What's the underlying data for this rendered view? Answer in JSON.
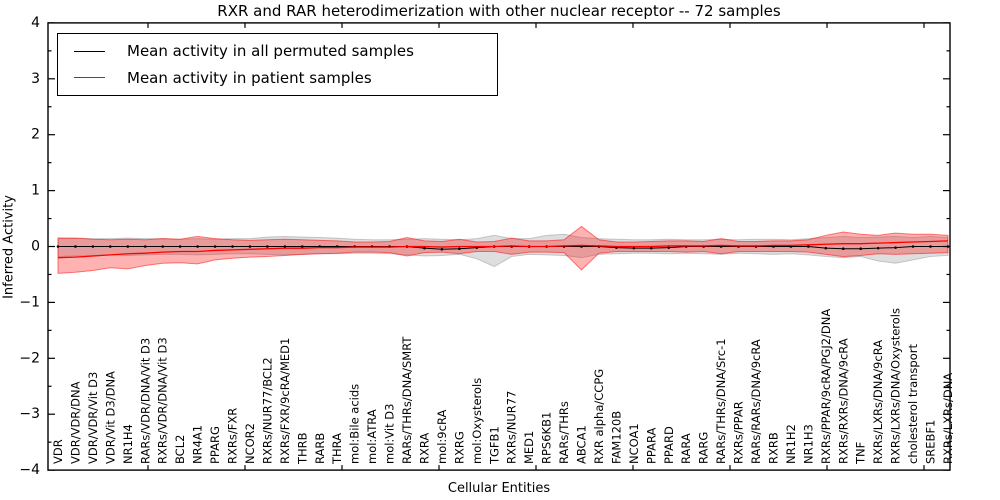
{
  "figure": {
    "legend": [
      {
        "label": "Mean activity in all permuted samples",
        "color": "#000000"
      },
      {
        "label": "Mean activity in patient samples",
        "color": "#ff0000"
      }
    ]
  },
  "chart_data": {
    "type": "line",
    "title": "RXR and RAR heterodimerization with other nuclear receptor -- 72 samples",
    "xlabel": "Cellular Entities",
    "ylabel": "Inferred Activity",
    "ylim": [
      -4,
      4
    ],
    "yticks": [
      -4,
      -3,
      -2,
      -1,
      0,
      1,
      2,
      3,
      4
    ],
    "grid": false,
    "legend_position": "upper left",
    "categories": [
      "VDR",
      "VDR/VDR/DNA",
      "VDR/VDR/Vit D3",
      "VDR/Vit D3/DNA",
      "NR1H4",
      "RARs/VDR/DNA/Vit D3",
      "RXRs/VDR/DNA/Vit D3",
      "BCL2",
      "NR4A1",
      "PPARG",
      "RXRs/FXR",
      "NCOR2",
      "RXRs/NUR77/BCL2",
      "RXRs/FXR/9cRA/MED1",
      "THRB",
      "RARB",
      "THRA",
      "mol:Bile acids",
      "mol:ATRA",
      "mol:Vit D3",
      "RARs/THRs/DNA/SMRT",
      "RXRA",
      "mol:9cRA",
      "RXRG",
      "mol:Oxysterols",
      "TGFB1",
      "RXRs/NUR77",
      "MED1",
      "RPS6KB1",
      "RARs/THRs",
      "ABCA1",
      "RXR alpha/CCPG",
      "FAM120B",
      "NCOA1",
      "PPARA",
      "PPARD",
      "RARA",
      "RARG",
      "RARs/THRs/DNA/Src-1",
      "RXRs/PPAR",
      "RARs/RARs/DNA/9cRA",
      "RXRB",
      "NR1H2",
      "NR1H3",
      "RXRs/PPAR/9cRA/PGJ2/DNA",
      "RXRs/RXRs/DNA/9cRA",
      "TNF",
      "RXRs/LXRs/DNA/9cRA",
      "RXRs/LXRs/DNA/Oxysterols",
      "cholesterol transport",
      "SREBF1",
      "RXRs/LXRs/DNA"
    ],
    "series": [
      {
        "name": "Mean activity in all permuted samples",
        "color": "#000000",
        "band_color": "rgba(0,0,0,0.13)",
        "band_edge": "rgba(0,0,0,0.18)",
        "marker": "dot",
        "values": [
          0,
          0,
          0,
          0,
          0,
          0,
          0,
          0,
          0,
          0,
          0,
          0,
          0,
          0,
          0,
          0,
          0,
          0,
          0,
          0,
          0,
          -0.03,
          -0.05,
          -0.04,
          -0.02,
          0,
          0,
          0,
          0,
          0,
          0,
          0,
          -0.02,
          -0.03,
          -0.03,
          -0.02,
          0,
          0,
          0,
          0,
          0,
          0,
          0,
          0,
          -0.03,
          -0.04,
          -0.04,
          -0.03,
          -0.02,
          0,
          0,
          0
        ],
        "band_upper": [
          0.16,
          0.15,
          0.14,
          0.14,
          0.15,
          0.14,
          0.14,
          0.13,
          0.14,
          0.13,
          0.14,
          0.14,
          0.17,
          0.18,
          0.17,
          0.16,
          0.15,
          0.13,
          0.12,
          0.12,
          0.13,
          0.14,
          0.13,
          0.12,
          0.14,
          0.2,
          0.14,
          0.14,
          0.2,
          0.22,
          0.16,
          0.14,
          0.13,
          0.12,
          0.12,
          0.13,
          0.12,
          0.12,
          0.13,
          0.12,
          0.13,
          0.13,
          0.12,
          0.14,
          0.16,
          0.18,
          0.16,
          0.17,
          0.18,
          0.16,
          0.18,
          0.16
        ],
        "band_lower": [
          -0.18,
          -0.17,
          -0.16,
          -0.15,
          -0.16,
          -0.15,
          -0.14,
          -0.14,
          -0.15,
          -0.14,
          -0.13,
          -0.13,
          -0.14,
          -0.15,
          -0.14,
          -0.13,
          -0.13,
          -0.12,
          -0.12,
          -0.13,
          -0.15,
          -0.17,
          -0.16,
          -0.14,
          -0.22,
          -0.36,
          -0.18,
          -0.14,
          -0.15,
          -0.16,
          -0.2,
          -0.14,
          -0.13,
          -0.12,
          -0.12,
          -0.13,
          -0.12,
          -0.13,
          -0.14,
          -0.12,
          -0.13,
          -0.14,
          -0.13,
          -0.15,
          -0.18,
          -0.2,
          -0.18,
          -0.26,
          -0.3,
          -0.24,
          -0.18,
          -0.16
        ]
      },
      {
        "name": "Mean activity in patient samples",
        "color": "#ff0000",
        "band_color": "rgba(255,0,0,0.30)",
        "band_edge": "rgba(255,0,0,0.50)",
        "marker": "none",
        "values": [
          -0.2,
          -0.19,
          -0.17,
          -0.15,
          -0.13,
          -0.12,
          -0.1,
          -0.09,
          -0.09,
          -0.07,
          -0.06,
          -0.05,
          -0.04,
          -0.03,
          -0.03,
          -0.02,
          -0.02,
          -0.01,
          -0.01,
          -0.01,
          0,
          0,
          -0.01,
          0,
          0,
          0,
          0.01,
          0,
          0,
          0.01,
          0.02,
          0.01,
          0,
          0,
          0,
          0.01,
          0.01,
          0.01,
          0.02,
          0.01,
          0.01,
          0.02,
          0.02,
          0.03,
          0.04,
          0.05,
          0.05,
          0.06,
          0.07,
          0.08,
          0.09,
          0.1
        ],
        "band_upper": [
          0.14,
          0.15,
          0.13,
          0.12,
          0.13,
          0.12,
          0.14,
          0.13,
          0.18,
          0.14,
          0.12,
          0.11,
          0.12,
          0.13,
          0.12,
          0.11,
          0.1,
          0.08,
          0.08,
          0.09,
          0.16,
          0.1,
          0.09,
          0.13,
          0.08,
          0.09,
          0.15,
          0.1,
          0.1,
          0.12,
          0.36,
          0.12,
          0.08,
          0.08,
          0.09,
          0.1,
          0.1,
          0.09,
          0.14,
          0.09,
          0.09,
          0.1,
          0.1,
          0.12,
          0.2,
          0.26,
          0.22,
          0.2,
          0.24,
          0.22,
          0.22,
          0.2
        ],
        "band_lower": [
          -0.48,
          -0.46,
          -0.43,
          -0.38,
          -0.4,
          -0.34,
          -0.3,
          -0.29,
          -0.31,
          -0.24,
          -0.21,
          -0.19,
          -0.18,
          -0.16,
          -0.14,
          -0.13,
          -0.12,
          -0.1,
          -0.1,
          -0.11,
          -0.17,
          -0.11,
          -0.1,
          -0.13,
          -0.09,
          -0.09,
          -0.14,
          -0.1,
          -0.1,
          -0.11,
          -0.42,
          -0.12,
          -0.09,
          -0.09,
          -0.09,
          -0.09,
          -0.1,
          -0.09,
          -0.13,
          -0.09,
          -0.09,
          -0.09,
          -0.09,
          -0.1,
          -0.14,
          -0.18,
          -0.16,
          -0.13,
          -0.14,
          -0.13,
          -0.12,
          -0.11
        ]
      }
    ]
  }
}
